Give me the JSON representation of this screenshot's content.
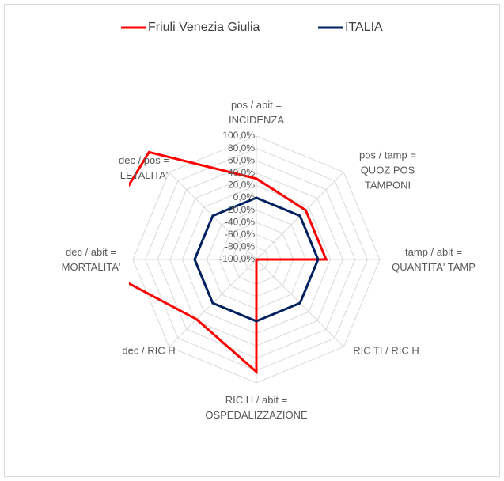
{
  "chart_data": {
    "type": "radar",
    "categories": [
      "pos / abit = INCIDENZA",
      "pos / tamp = QUOZ POS TAMPONI",
      "tamp / abit = QUANTITA' TAMP",
      "RIC TI / RIC H",
      "RIC H / abit = OSPEDALIZZAZIONE",
      "dec  / RIC H",
      "dec / abit = MORTALITA'",
      "dec / pos = LETALITA'"
    ],
    "series": [
      {
        "name": "Friuli Venezia Giulia",
        "color": "#ff0000",
        "values": [
          31,
          13,
          13,
          -100,
          82,
          37,
          180,
          146
        ]
      },
      {
        "name": "ITALIA",
        "color": "#002060",
        "values": [
          0,
          0,
          0,
          0,
          0,
          0,
          0,
          0
        ]
      }
    ],
    "ylim": [
      -100,
      100
    ],
    "yticks": [
      {
        "value": -100,
        "label": "-100,0%"
      },
      {
        "value": -80,
        "label": "-80,0%"
      },
      {
        "value": -60,
        "label": "-60,0%"
      },
      {
        "value": -40,
        "label": "-40,0%"
      },
      {
        "value": -20,
        "label": "-20,0%"
      },
      {
        "value": 0,
        "label": "0,0%"
      },
      {
        "value": 20,
        "label": "20,0%"
      },
      {
        "value": 40,
        "label": "40,0%"
      },
      {
        "value": 60,
        "label": "60,0%"
      },
      {
        "value": 80,
        "label": "80,0%"
      },
      {
        "value": 100,
        "label": "100,0%"
      }
    ],
    "legend": "top",
    "grid": true
  }
}
